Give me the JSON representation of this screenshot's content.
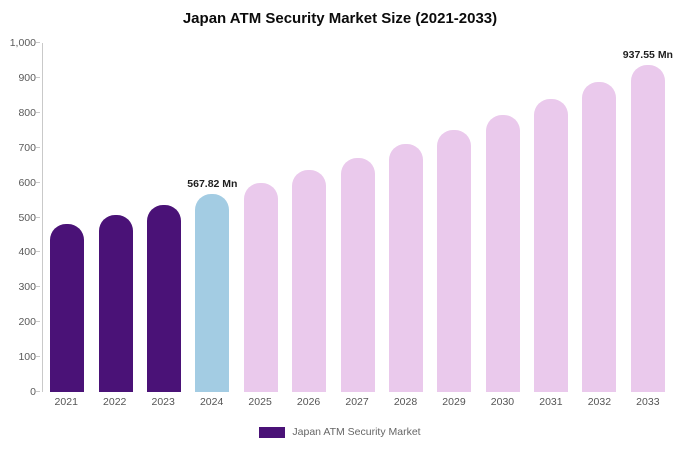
{
  "title": "Japan ATM Security Market Size (2021-2033)",
  "legend": {
    "label": "Japan ATM Security Market",
    "swatch_color": "#4a1277"
  },
  "colors": {
    "historical_bar": "#4a1277",
    "current_year_bar": "#a3cce3",
    "forecast_bar": "#eac9ec",
    "axis_line": "#c9c9c9"
  },
  "chart_data": {
    "type": "bar",
    "title": "Japan ATM Security Market Size (2021-2033)",
    "xlabel": "",
    "ylabel": "",
    "unit": "Mn",
    "grid": false,
    "legend_position": "bottom",
    "categories": [
      "2021",
      "2022",
      "2023",
      "2024",
      "2025",
      "2026",
      "2027",
      "2028",
      "2029",
      "2030",
      "2031",
      "2032",
      "2033"
    ],
    "values": [
      480,
      508,
      537,
      567.82,
      600,
      635,
      671,
      710,
      750,
      793,
      839,
      887,
      937.55
    ],
    "bar_colors": [
      "#4a1277",
      "#4a1277",
      "#4a1277",
      "#a3cce3",
      "#eac9ec",
      "#eac9ec",
      "#eac9ec",
      "#eac9ec",
      "#eac9ec",
      "#eac9ec",
      "#eac9ec",
      "#eac9ec",
      "#eac9ec"
    ],
    "ylim": [
      0,
      1000
    ],
    "yticks": [
      0,
      100,
      200,
      300,
      400,
      500,
      600,
      700,
      800,
      900,
      1000
    ],
    "ytick_labels": [
      "0",
      "100",
      "200",
      "300",
      "400",
      "500",
      "600",
      "700",
      "800",
      "900",
      "1,000"
    ],
    "annotations": [
      {
        "category": "2024",
        "text": "567.82 Mn"
      },
      {
        "category": "2033",
        "text": "937.55 Mn"
      }
    ]
  }
}
